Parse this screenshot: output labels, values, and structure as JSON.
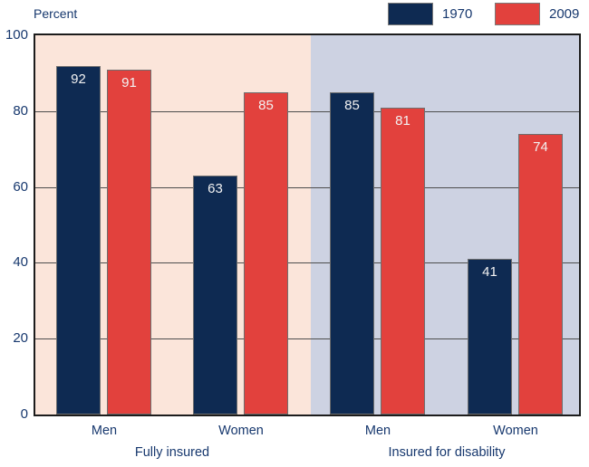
{
  "chart_data": {
    "type": "bar",
    "title": "",
    "ylabel": "Percent",
    "ylim": [
      0,
      100
    ],
    "yticks": [
      0,
      20,
      40,
      60,
      80,
      100
    ],
    "grid": true,
    "legend_position": "top-right",
    "value_labels": "inside-top-white",
    "categories": [
      "Men",
      "Women",
      "Men",
      "Women"
    ],
    "series": [
      {
        "name": "1970",
        "color": "#0e2a52",
        "values": [
          92,
          63,
          85,
          41
        ]
      },
      {
        "name": "2009",
        "color": "#e2413d",
        "values": [
          91,
          85,
          81,
          74
        ]
      }
    ],
    "groups": [
      {
        "label": "Fully insured",
        "category_indices": [
          0,
          1
        ],
        "background": "#fbe5da"
      },
      {
        "label": "Insured for disability",
        "category_indices": [
          2,
          3
        ],
        "background": "#cdd2e2"
      }
    ]
  },
  "colors": {
    "text": "#17386e",
    "grid_line": "#4d4d4d",
    "plot_frame": "#1c1c1c",
    "bar_border": "#6e6e6e",
    "value_label": "#f2f2f2",
    "page_background": "#ffffff"
  }
}
